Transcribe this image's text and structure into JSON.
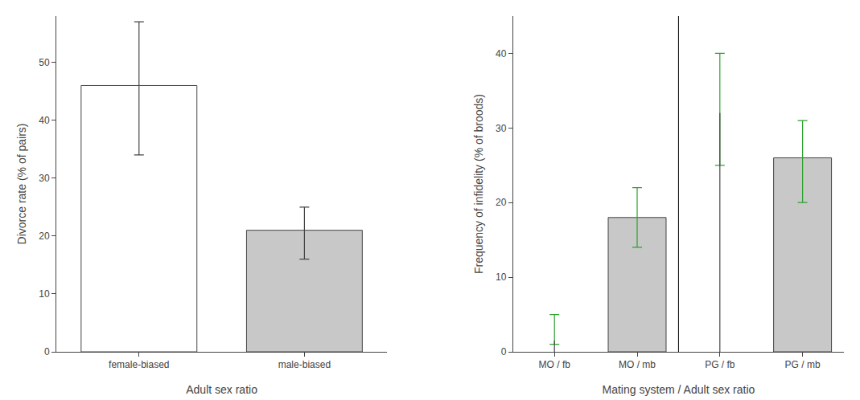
{
  "chart_data": [
    {
      "type": "bar",
      "categories": [
        "female-biased",
        "male-biased"
      ],
      "values": [
        46,
        21
      ],
      "colors": [
        "white",
        "#c8c8c8"
      ],
      "error_lower": [
        12,
        5
      ],
      "error_upper": [
        11,
        4
      ],
      "xlabel": "Adult sex ratio",
      "ylabel": "Divorce rate (% of pairs)",
      "ylim": [
        0,
        58
      ],
      "yticks": [
        0,
        10,
        20,
        30,
        40,
        50
      ],
      "grid": false
    },
    {
      "type": "bar",
      "categories": [
        "MO / fb",
        "MO / mb",
        "PG / fb",
        "PG / mb"
      ],
      "values": [
        null,
        18,
        null,
        26
      ],
      "color": "#c8c8c8",
      "error_center": [
        2,
        18,
        32,
        26
      ],
      "error_lower": [
        1,
        4,
        7,
        6
      ],
      "error_upper": [
        3,
        4,
        8,
        5
      ],
      "stem_values": [
        1.5,
        null,
        32,
        null
      ],
      "xlabel": "Mating system / Adult sex ratio",
      "ylabel": "Frequency of infidelity (% of broods)",
      "ylim": [
        0,
        45
      ],
      "yticks": [
        0,
        10,
        20,
        30,
        40
      ],
      "grid": false
    }
  ]
}
